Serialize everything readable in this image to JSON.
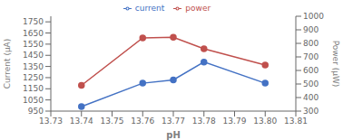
{
  "chart_data": {
    "type": "line",
    "xlabel": "pH",
    "ylabel": "Current (μA)",
    "y2label": "Power (μW)",
    "x": [
      13.74,
      13.76,
      13.77,
      13.78,
      13.8
    ],
    "series": [
      {
        "name": "current",
        "color": "#4472c4",
        "values": [
          990,
          1200,
          1230,
          1390,
          1200
        ],
        "marker": "circle"
      },
      {
        "name": "power",
        "color": "#c0504d",
        "values": [
          490,
          840,
          845,
          760,
          640
        ],
        "axis": "y2",
        "marker": "circle"
      }
    ],
    "xlim": [
      13.73,
      13.81
    ],
    "xticks": [
      13.73,
      13.74,
      13.75,
      13.76,
      13.77,
      13.78,
      13.79,
      {
        "value": 13.8,
        "label": "13.80"
      },
      13.81
    ],
    "ylim": [
      950,
      1800
    ],
    "yticks": [
      950,
      1050,
      1150,
      1250,
      1350,
      1450,
      1550,
      1650,
      1750
    ],
    "y2lim": [
      300,
      1000
    ],
    "y2ticks": [
      300,
      400,
      500,
      600,
      700,
      800,
      900,
      1000
    ],
    "grid": false,
    "legend": "upper center"
  }
}
